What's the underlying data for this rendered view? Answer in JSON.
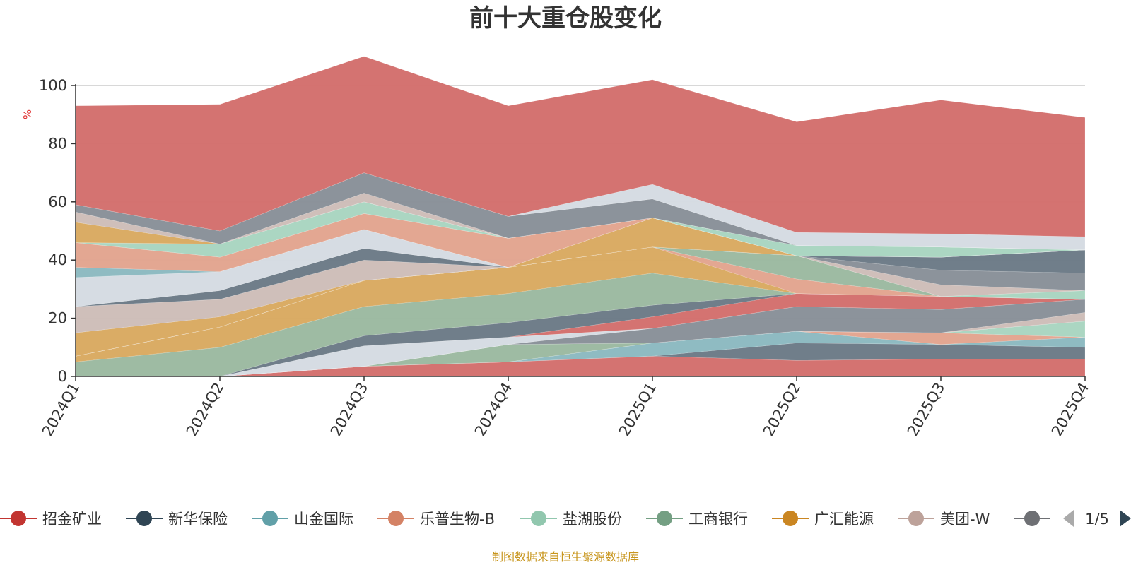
{
  "chart_data": {
    "type": "area",
    "stacked": true,
    "title": "前十大重仓股变化",
    "xlabel": "",
    "ylabel": "%",
    "ylim": [
      0,
      100
    ],
    "yticks": [
      0,
      20,
      40,
      60,
      80,
      100
    ],
    "grid": true,
    "legend_position": "bottom",
    "categories": [
      "2024Q1",
      "2024Q2",
      "2024Q3",
      "2024Q4",
      "2025Q1",
      "2025Q2",
      "2025Q3",
      "2025Q4"
    ],
    "series": [
      {
        "name": "",
        "color": "#d36e6c",
        "values": [
          0,
          0,
          3.5,
          5,
          7,
          5.5,
          6,
          6
        ]
      },
      {
        "name": "",
        "color": "#6b7a86",
        "values": [
          0,
          0,
          0,
          0,
          0,
          6,
          5,
          4
        ]
      },
      {
        "name": "",
        "color": "#8bb9c0",
        "values": [
          0,
          0,
          0,
          0,
          4.5,
          4,
          0,
          3.5
        ]
      },
      {
        "name": "",
        "color": "#e2a48e",
        "values": [
          0,
          0,
          0,
          0,
          0,
          0,
          4,
          0
        ]
      },
      {
        "name": "",
        "color": "#a8d5c0",
        "values": [
          0,
          0,
          0,
          0,
          0,
          0,
          0,
          5.5
        ]
      },
      {
        "name": "",
        "color": "#9bb9a0",
        "values": [
          0,
          0,
          0,
          6,
          0,
          0,
          0,
          0
        ]
      },
      {
        "name": "",
        "color": "#e8c98a",
        "values": [
          0,
          0,
          0,
          0,
          0,
          0,
          0,
          0
        ]
      },
      {
        "name": "",
        "color": "#cdbdb8",
        "values": [
          0,
          0,
          0,
          0,
          0,
          0,
          0,
          3
        ]
      },
      {
        "name": "",
        "color": "#888f98",
        "values": [
          0,
          0,
          0,
          0,
          5,
          8.5,
          8,
          4.5
        ]
      },
      {
        "name": "",
        "color": "#d5dbe2",
        "values": [
          0,
          0,
          7,
          2.5,
          0,
          0,
          0,
          0
        ]
      },
      {
        "name": "",
        "color": "#d36e6c",
        "values": [
          0,
          0,
          0,
          0,
          4,
          4.5,
          4.5,
          0
        ]
      },
      {
        "name": "",
        "color": "#6b7a86",
        "values": [
          0,
          0,
          3.5,
          5,
          4,
          0,
          0,
          0
        ]
      },
      {
        "name": "",
        "color": "#9bb9a0",
        "values": [
          5,
          10,
          10,
          10,
          11,
          0,
          0,
          0
        ]
      },
      {
        "name": "",
        "color": "#d9a960",
        "values": [
          2,
          7,
          9,
          9,
          9,
          0,
          0,
          0
        ]
      },
      {
        "name": "",
        "color": "#e2a48e",
        "values": [
          0,
          0,
          0,
          0,
          0,
          5,
          0,
          0
        ]
      },
      {
        "name": "",
        "color": "#9bb9a0",
        "values": [
          0,
          0,
          0,
          0,
          0,
          8,
          0,
          0
        ]
      },
      {
        "name": "",
        "color": "#a8d5c0",
        "values": [
          0,
          0,
          0,
          0,
          0,
          0,
          0,
          3
        ]
      },
      {
        "name": "",
        "color": "#cdbdb8",
        "values": [
          0,
          0,
          0,
          0,
          0,
          0,
          4,
          0
        ]
      },
      {
        "name": "",
        "color": "#888f98",
        "values": [
          0,
          0,
          0,
          0,
          0,
          0,
          5,
          6
        ]
      },
      {
        "name": "",
        "color": "#6b7a86",
        "values": [
          0,
          0,
          0,
          0,
          0,
          0,
          4.5,
          8
        ]
      },
      {
        "name": "",
        "color": "#d9a960",
        "values": [
          8,
          3.5,
          0,
          0,
          10,
          0,
          0,
          0
        ]
      },
      {
        "name": "",
        "color": "#cdbdb8",
        "values": [
          9,
          6,
          7,
          0,
          0,
          0,
          0,
          0
        ]
      },
      {
        "name": "",
        "color": "#6b7a86",
        "values": [
          0,
          3,
          4,
          0,
          0,
          0,
          0,
          0
        ]
      },
      {
        "name": "",
        "color": "#d5dbe2",
        "values": [
          10,
          6.5,
          6.5,
          0,
          0,
          0,
          0,
          0
        ]
      },
      {
        "name": "",
        "color": "#8bb9c0",
        "values": [
          3.5,
          0,
          0,
          0,
          0,
          0,
          0,
          0
        ]
      },
      {
        "name": "",
        "color": "#e2a48e",
        "values": [
          8.5,
          5,
          5.5,
          10,
          0,
          0,
          0,
          0
        ]
      },
      {
        "name": "",
        "color": "#d36e6c",
        "values": [
          0,
          0,
          0,
          0,
          0,
          0,
          0,
          0
        ]
      },
      {
        "name": "",
        "color": "#a8d5c0",
        "values": [
          0,
          4.5,
          4,
          0,
          0,
          3.5,
          3.5,
          0
        ]
      },
      {
        "name": "",
        "color": "#9bb9a0",
        "values": [
          0,
          0,
          0,
          0,
          0,
          0,
          0,
          0
        ]
      },
      {
        "name": "",
        "color": "#d9a960",
        "values": [
          7,
          0,
          0,
          0,
          0,
          0,
          0,
          0
        ]
      },
      {
        "name": "",
        "color": "#cdbdb8",
        "values": [
          3.5,
          0,
          3,
          0,
          0,
          0,
          0,
          0
        ]
      },
      {
        "name": "",
        "color": "#888f98",
        "values": [
          2.5,
          4.5,
          7,
          7.5,
          6.5,
          0,
          0,
          0
        ]
      },
      {
        "name": "",
        "color": "#d5dbe2",
        "values": [
          0,
          0,
          0,
          0,
          5,
          4.5,
          4.5,
          4.5
        ]
      },
      {
        "name": "",
        "color": "#d36e6c",
        "values": [
          34,
          43.5,
          40,
          38,
          36,
          38,
          46,
          41
        ]
      }
    ],
    "legend": [
      {
        "label": "招金矿业",
        "color": "#c23531"
      },
      {
        "label": "新华保险",
        "color": "#2f4554"
      },
      {
        "label": "山金国际",
        "color": "#61a0a8"
      },
      {
        "label": "乐普生物-B",
        "color": "#d48265"
      },
      {
        "label": "盐湖股份",
        "color": "#91c7ae"
      },
      {
        "label": "工商银行",
        "color": "#749f83"
      },
      {
        "label": "广汇能源",
        "color": "#ca8622"
      },
      {
        "label": "美团-W",
        "color": "#bda29a"
      },
      {
        "label": "",
        "color": "#6e7074"
      }
    ],
    "pager": "1/5",
    "source_note": "制图数据来自恒生聚源数据库"
  }
}
